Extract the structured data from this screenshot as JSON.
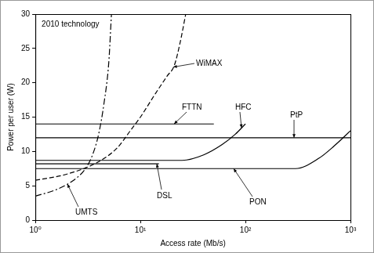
{
  "chart_data": {
    "type": "line",
    "title": "2010 technology",
    "x_label": "Access rate (Mb/s)",
    "y_label": "Power per user (W)",
    "log": "x",
    "grid": false,
    "xlim": [
      1,
      1000
    ],
    "xticks": [
      {
        "value": 1,
        "label": "10⁰"
      },
      {
        "value": 10,
        "label": "10¹"
      },
      {
        "value": 100,
        "label": "10²"
      },
      {
        "value": 1000,
        "label": "10³"
      }
    ],
    "ylim": [
      0,
      30
    ],
    "yticks": [
      0,
      5,
      10,
      15,
      20,
      25,
      30
    ],
    "series": [
      {
        "name": "WiMAX",
        "color": "#000000",
        "line_style": "dashed",
        "x": [
          1,
          2,
          4,
          6,
          8,
          10,
          14,
          18,
          21,
          24,
          27
        ],
        "values": [
          5.8,
          6.7,
          8.5,
          10.5,
          13,
          15,
          18.5,
          21,
          22.5,
          26,
          30
        ]
      },
      {
        "name": "UMTS",
        "color": "#000000",
        "line_style": "dashdot",
        "x": [
          1,
          1.5,
          2,
          2.5,
          3,
          3.5,
          4,
          4.5,
          5,
          5.3
        ],
        "values": [
          3.5,
          4.3,
          5.2,
          6.2,
          7.5,
          9.5,
          12.5,
          17,
          23,
          30
        ]
      },
      {
        "name": "FTTN",
        "color": "#000000",
        "line_style": "solid",
        "x": [
          1,
          50
        ],
        "values": [
          14,
          14
        ]
      },
      {
        "name": "HFC",
        "color": "#000000",
        "line_style": "solid",
        "x": [
          1,
          25,
          40,
          60,
          80,
          100
        ],
        "values": [
          8.7,
          8.7,
          9.5,
          11,
          12.5,
          14
        ]
      },
      {
        "name": "PtP",
        "color": "#000000",
        "line_style": "solid",
        "x": [
          1,
          1000
        ],
        "values": [
          12,
          12
        ]
      },
      {
        "name": "DSL",
        "color": "#000000",
        "line_style": "solid",
        "x": [
          1,
          15
        ],
        "values": [
          8.2,
          8.2
        ]
      },
      {
        "name": "PON",
        "color": "#000000",
        "line_style": "solid",
        "x": [
          1,
          300,
          500,
          700,
          1000
        ],
        "values": [
          7.5,
          7.5,
          9,
          10.8,
          13
        ]
      }
    ]
  }
}
